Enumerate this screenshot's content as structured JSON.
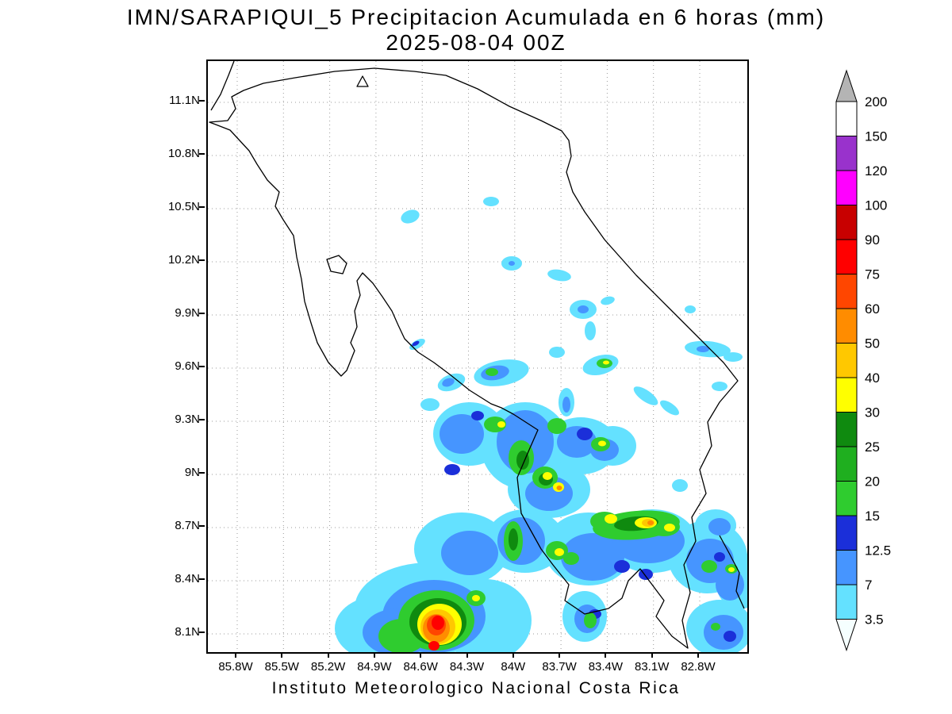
{
  "title": {
    "line1": "IMN/SARAPIQUI_5 Precipitacion Acumulada en 6 horas (mm)",
    "line2": "2025-08-04 00Z"
  },
  "footer": {
    "caption": "Instituto Meteorologico Nacional Costa Rica"
  },
  "axes": {
    "y_ticks": [
      "11.1N",
      "10.8N",
      "10.5N",
      "10.2N",
      "9.9N",
      "9.6N",
      "9.3N",
      "9N",
      "8.7N",
      "8.4N",
      "8.1N"
    ],
    "x_ticks": [
      "85.8W",
      "85.5W",
      "85.2W",
      "84.9W",
      "84.6W",
      "84.3W",
      "84W",
      "83.7W",
      "83.4W",
      "83.1W",
      "82.8W"
    ]
  },
  "colorbar": {
    "labels": [
      "200",
      "150",
      "120",
      "100",
      "90",
      "75",
      "60",
      "50",
      "40",
      "30",
      "25",
      "20",
      "15",
      "12.5",
      "7",
      "3.5"
    ],
    "segment_colors_top_to_bottom": [
      "#FFFFFF",
      "#9932CC",
      "#FF00FF",
      "#C80000",
      "#FF0000",
      "#FF4600",
      "#FF8C00",
      "#FFC800",
      "#FFFF00",
      "#0F8A0F",
      "#1FAF1F",
      "#2FCC2F",
      "#1B2FD9",
      "#4695FF",
      "#64E1FF"
    ],
    "above_max_color": "#B4B4B4",
    "below_min_color": "#F5FFFF"
  },
  "chart_data": {
    "type": "map",
    "map_subject": "Costa Rica",
    "variable": "Precipitacion Acumulada en 6 horas (mm)",
    "model_run": "IMN/SARAPIQUI_5",
    "valid_time": "2025-08-04 00Z",
    "lat_range": [
      "8.1N",
      "11.1N"
    ],
    "lon_range": [
      "85.8W",
      "82.8W"
    ],
    "contour_levels_mm": [
      3.5,
      7,
      12.5,
      15,
      20,
      25,
      30,
      40,
      50,
      60,
      75,
      90,
      100,
      120,
      150,
      200
    ],
    "level_colors_low_to_high": [
      "#64E1FF",
      "#4695FF",
      "#1B2FD9",
      "#2FCC2F",
      "#1FAF1F",
      "#0F8A0F",
      "#FFFF00",
      "#FFC800",
      "#FF8C00",
      "#FF4600",
      "#FF0000",
      "#C80000",
      "#FF00FF",
      "#9932CC",
      "#FFFFFF"
    ],
    "notes": "Filled-contour shading of 6-hour accumulated precipitation over Costa Rica; heaviest core (>75 mm, red) on the southern Pacific coast near 8.1N 84.6W, widespread 3.5-30 mm over the central and Caribbean south."
  }
}
